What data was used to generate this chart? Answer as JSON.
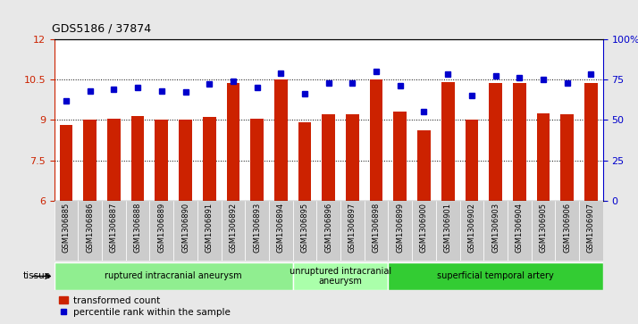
{
  "title": "GDS5186 / 37874",
  "samples": [
    "GSM1306885",
    "GSM1306886",
    "GSM1306887",
    "GSM1306888",
    "GSM1306889",
    "GSM1306890",
    "GSM1306891",
    "GSM1306892",
    "GSM1306893",
    "GSM1306894",
    "GSM1306895",
    "GSM1306896",
    "GSM1306897",
    "GSM1306898",
    "GSM1306899",
    "GSM1306900",
    "GSM1306901",
    "GSM1306902",
    "GSM1306903",
    "GSM1306904",
    "GSM1306905",
    "GSM1306906",
    "GSM1306907"
  ],
  "bar_values": [
    8.8,
    9.0,
    9.05,
    9.15,
    9.0,
    9.0,
    9.1,
    10.35,
    9.05,
    10.5,
    8.9,
    9.2,
    9.2,
    10.5,
    9.3,
    8.6,
    10.4,
    9.0,
    10.35,
    10.35,
    9.25,
    9.2,
    10.35
  ],
  "percentile_values": [
    62,
    68,
    69,
    70,
    68,
    67,
    72,
    74,
    70,
    79,
    66,
    73,
    73,
    80,
    71,
    55,
    78,
    65,
    77,
    76,
    75,
    73,
    78
  ],
  "bar_color": "#CC2200",
  "dot_color": "#0000CC",
  "ylim_left": [
    6,
    12
  ],
  "ylim_right": [
    0,
    100
  ],
  "yticks_left": [
    6,
    7.5,
    9,
    10.5,
    12
  ],
  "ytick_labels_left": [
    "6",
    "7.5",
    "9",
    "10.5",
    "12"
  ],
  "yticks_right": [
    0,
    25,
    50,
    75,
    100
  ],
  "ytick_labels_right": [
    "0",
    "25",
    "50",
    "75",
    "100%"
  ],
  "groups": [
    {
      "label": "ruptured intracranial aneurysm",
      "start": 0,
      "end": 10,
      "color": "#90EE90"
    },
    {
      "label": "unruptured intracranial\naneurysm",
      "start": 10,
      "end": 14,
      "color": "#AAFFAA"
    },
    {
      "label": "superficial temporal artery",
      "start": 14,
      "end": 23,
      "color": "#33CC33"
    }
  ],
  "tissue_label": "tissue",
  "legend_bar_label": "transformed count",
  "legend_dot_label": "percentile rank within the sample",
  "background_color": "#E8E8E8",
  "plot_bg_color": "#FFFFFF",
  "figsize": [
    7.14,
    3.63
  ],
  "dpi": 100
}
